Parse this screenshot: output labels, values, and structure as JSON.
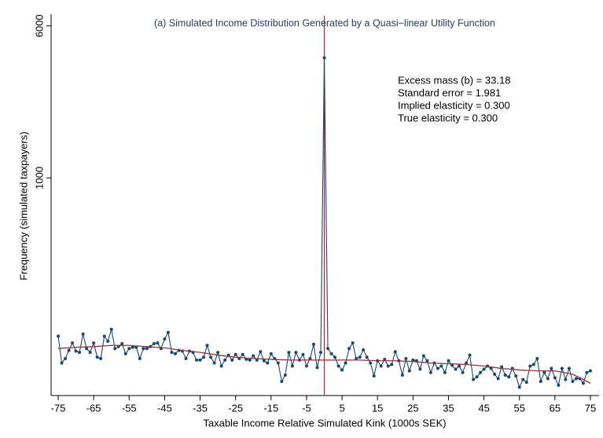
{
  "chart_data": {
    "type": "line",
    "title": "(a) Simulated Income Distribution Generated by a Quasi−linear Utility Function",
    "x_label": "Taxable Income Relative Simulated Kink (1000s SEK)",
    "y_label": "Frequency (simulated taxpayers)",
    "annotations": [
      "Excess mass (b) = 33.18",
      "Standard error = 1.981",
      "Implied elasticity = 0.300",
      "True elasticity = 0.300"
    ],
    "log_y": true,
    "kink_x": 0,
    "kink_color": "#b0263f",
    "xlim": [
      -77,
      77
    ],
    "xticks": [
      -75,
      -65,
      -55,
      -45,
      -35,
      -25,
      -15,
      -5,
      5,
      15,
      25,
      35,
      45,
      55,
      65,
      75
    ],
    "ylim": [
      77,
      6760
    ],
    "yticks": [
      1000,
      6000
    ],
    "series": [
      {
        "color": "#1a476f",
        "markers": true,
        "x": [
          -75,
          -74,
          -73,
          -72,
          -71,
          -70,
          -69,
          -68,
          -67,
          -66,
          -65,
          -64,
          -63,
          -62,
          -61,
          -60,
          -59,
          -58,
          -57,
          -56,
          -55,
          -54,
          -53,
          -52,
          -51,
          -50,
          -49,
          -48,
          -47,
          -46,
          -45,
          -44,
          -43,
          -42,
          -41,
          -40,
          -39,
          -38,
          -37,
          -36,
          -35,
          -34,
          -33,
          -32,
          -31,
          -30,
          -29,
          -28,
          -27,
          -26,
          -25,
          -24,
          -23,
          -22,
          -21,
          -20,
          -19,
          -18,
          -17,
          -16,
          -15,
          -14,
          -13,
          -12,
          -11,
          -10,
          -9,
          -8,
          -7,
          -6,
          -5,
          -4,
          -3,
          -2,
          -1,
          0,
          1,
          2,
          3,
          4,
          5,
          6,
          7,
          8,
          9,
          10,
          11,
          12,
          13,
          14,
          15,
          16,
          17,
          18,
          19,
          20,
          21,
          22,
          23,
          24,
          25,
          26,
          27,
          28,
          29,
          30,
          31,
          32,
          33,
          34,
          35,
          36,
          37,
          38,
          39,
          40,
          41,
          42,
          43,
          44,
          45,
          46,
          47,
          48,
          49,
          50,
          51,
          52,
          53,
          54,
          55,
          56,
          57,
          58,
          59,
          60,
          61,
          62,
          63,
          64,
          65,
          66,
          67,
          68,
          69,
          70,
          71,
          72,
          73,
          74,
          75
        ],
        "values": [
          155,
          113,
          119,
          131,
          143,
          130,
          128,
          159,
          134,
          128,
          143,
          121,
          119,
          155,
          146,
          168,
          134,
          137,
          142,
          126,
          134,
          136,
          136,
          119,
          134,
          134,
          137,
          142,
          143,
          134,
          150,
          162,
          128,
          126,
          131,
          130,
          119,
          130,
          128,
          117,
          117,
          121,
          139,
          121,
          113,
          128,
          109,
          117,
          124,
          117,
          125,
          119,
          125,
          118,
          117,
          123,
          117,
          129,
          116,
          113,
          126,
          119,
          113,
          91,
          98,
          128,
          109,
          128,
          117,
          125,
          109,
          119,
          141,
          107,
          128,
          4120,
          134,
          126,
          121,
          109,
          104,
          113,
          134,
          143,
          119,
          121,
          132,
          121,
          113,
          97,
          116,
          109,
          118,
          109,
          111,
          129,
          116,
          98,
          119,
          103,
          117,
          116,
          105,
          123,
          116,
          101,
          113,
          106,
          109,
          101,
          116,
          110,
          105,
          109,
          101,
          113,
          124,
          93,
          96,
          101,
          105,
          109,
          106,
          99,
          94,
          108,
          98,
          96,
          106,
          97,
          85,
          93,
          90,
          109,
          111,
          119,
          91,
          101,
          94,
          106,
          95,
          87,
          106,
          93,
          106,
          91,
          94,
          94,
          89,
          101,
          103
        ]
      },
      {
        "color": "#90353b",
        "markers": false,
        "x": [
          -75,
          -70,
          -65,
          -60,
          -55,
          -50,
          -45,
          -40,
          -35,
          -30,
          -25,
          -20,
          -15,
          -10,
          -5,
          0,
          5,
          10,
          15,
          20,
          25,
          30,
          35,
          40,
          45,
          50,
          55,
          60,
          65,
          70,
          75
        ],
        "values": [
          134,
          136,
          137,
          139,
          139,
          137,
          135,
          131,
          128,
          124,
          121,
          119,
          118,
          117,
          117,
          117,
          117,
          117,
          116,
          116,
          115,
          113,
          112,
          111,
          109,
          106,
          104,
          103,
          103,
          99,
          89
        ]
      }
    ]
  }
}
